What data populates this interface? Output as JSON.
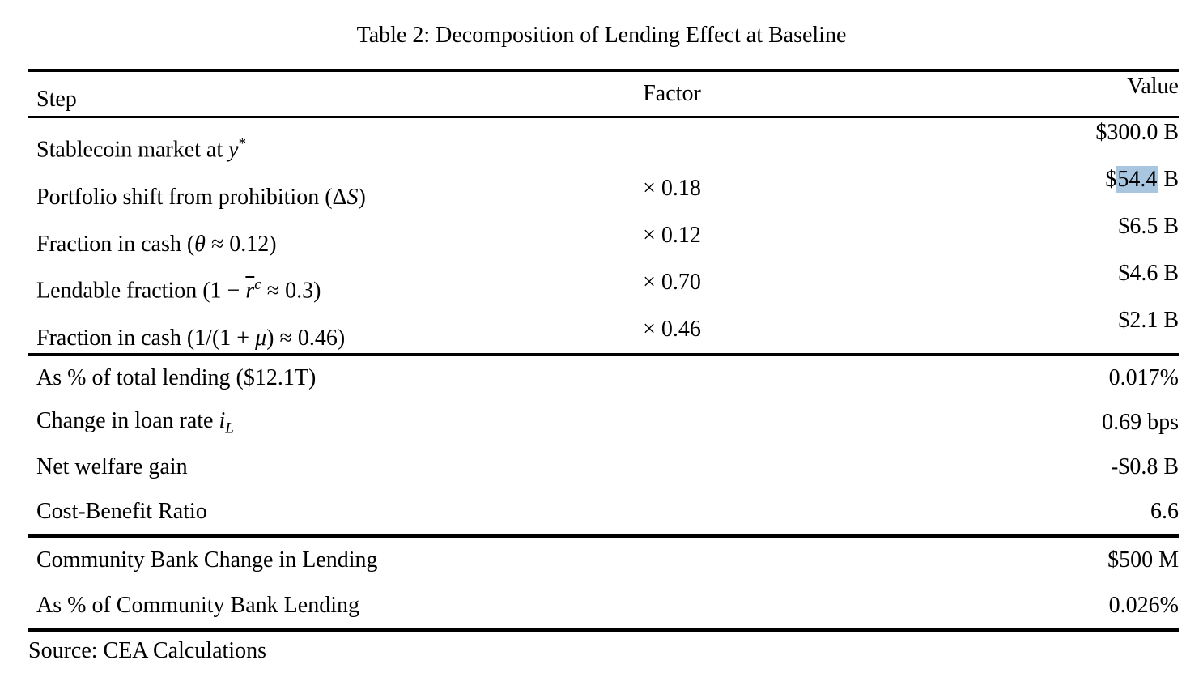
{
  "title": "Table 2: Decomposition of Lending Effect at Baseline",
  "source_note": "Source: CEA Calculations",
  "colors": {
    "highlight": "#a9c6e0",
    "rule": "#000000"
  },
  "header": {
    "step": "Step",
    "factor": "Factor",
    "value": "Value"
  },
  "sections": [
    {
      "name": "decomposition-steps",
      "rows": [
        {
          "step": [
            {
              "t": "Stablecoin market at "
            },
            {
              "t": "y",
              "s": "it"
            },
            {
              "t": "*",
              "s": "sup"
            }
          ],
          "factor": "",
          "value": [
            {
              "t": "$300.0 B"
            }
          ]
        },
        {
          "step": [
            {
              "t": "Portfolio shift from prohibition (Δ"
            },
            {
              "t": "S",
              "s": "it"
            },
            {
              "t": ")"
            }
          ],
          "factor": "× 0.18",
          "value": [
            {
              "t": "$"
            },
            {
              "t": "54.4",
              "s": "hl"
            },
            {
              "t": " B"
            }
          ]
        },
        {
          "step": [
            {
              "t": "Fraction in cash ("
            },
            {
              "t": "θ",
              "s": "it"
            },
            {
              "t": " ≈ 0.12)"
            }
          ],
          "factor": "× 0.12",
          "value": [
            {
              "t": "$6.5 B"
            }
          ]
        },
        {
          "step": [
            {
              "t": "Lendable fraction (1 − "
            },
            {
              "t": "r",
              "s": "olit"
            },
            {
              "t": "c",
              "s": "supit"
            },
            {
              "t": " ≈ 0.3)"
            }
          ],
          "factor": "× 0.70",
          "value": [
            {
              "t": "$4.6 B"
            }
          ]
        },
        {
          "step": [
            {
              "t": "Fraction in cash (1/(1 + "
            },
            {
              "t": "μ",
              "s": "it"
            },
            {
              "t": ") ≈ 0.46)"
            }
          ],
          "factor": "× 0.46",
          "value": [
            {
              "t": "$2.1 B"
            }
          ]
        }
      ]
    },
    {
      "name": "aggregate-effects",
      "rows": [
        {
          "step": [
            {
              "t": "As % of total lending ($12.1T)"
            }
          ],
          "factor": "",
          "value": [
            {
              "t": "0.017%"
            }
          ]
        },
        {
          "step": [
            {
              "t": "Change in loan rate "
            },
            {
              "t": "i",
              "s": "it"
            },
            {
              "t": "L",
              "s": "subit"
            }
          ],
          "factor": "",
          "value": [
            {
              "t": "0.69 bps"
            }
          ]
        },
        {
          "step": [
            {
              "t": "Net welfare gain"
            }
          ],
          "factor": "",
          "value": [
            {
              "t": "-$0.8 B"
            }
          ]
        },
        {
          "step": [
            {
              "t": "Cost-Benefit Ratio"
            }
          ],
          "factor": "",
          "value": [
            {
              "t": "6.6"
            }
          ]
        }
      ]
    },
    {
      "name": "community-bank",
      "rows": [
        {
          "step": [
            {
              "t": "Community Bank Change in Lending"
            }
          ],
          "factor": "",
          "value": [
            {
              "t": "$500 M"
            }
          ]
        },
        {
          "step": [
            {
              "t": "As % of Community Bank Lending"
            }
          ],
          "factor": "",
          "value": [
            {
              "t": "0.026%"
            }
          ]
        }
      ]
    }
  ]
}
